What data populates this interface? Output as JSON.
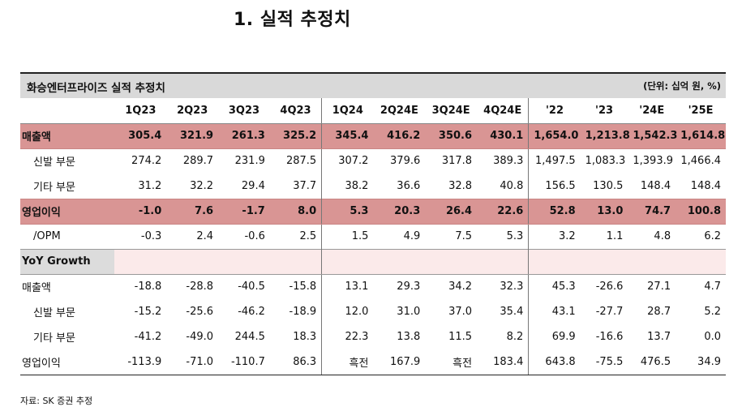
{
  "page_title": "1.  실적 추정치",
  "table": {
    "title": "화승엔터프라이즈 실적 추정치",
    "unit": "(단위: 십억 원, %)",
    "columns": [
      "1Q23",
      "2Q23",
      "3Q23",
      "4Q23",
      "1Q24",
      "2Q24E",
      "3Q24E",
      "4Q24E",
      "'22",
      "'23",
      "'24E",
      "'25E"
    ],
    "rows": [
      {
        "label": "매출액",
        "values": [
          "305.4",
          "321.9",
          "261.3",
          "325.2",
          "345.4",
          "416.2",
          "350.6",
          "430.1",
          "1,654.0",
          "1,213.8",
          "1,542.3",
          "1,614.8"
        ]
      },
      {
        "label": "신발 부문",
        "values": [
          "274.2",
          "289.7",
          "231.9",
          "287.5",
          "307.2",
          "379.6",
          "317.8",
          "389.3",
          "1,497.5",
          "1,083.3",
          "1,393.9",
          "1,466.4"
        ]
      },
      {
        "label": "기타 부문",
        "values": [
          "31.2",
          "32.2",
          "29.4",
          "37.7",
          "38.2",
          "36.6",
          "32.8",
          "40.8",
          "156.5",
          "130.5",
          "148.4",
          "148.4"
        ]
      },
      {
        "label": "영업이익",
        "values": [
          "-1.0",
          "7.6",
          "-1.7",
          "8.0",
          "5.3",
          "20.3",
          "26.4",
          "22.6",
          "52.8",
          "13.0",
          "74.7",
          "100.8"
        ]
      },
      {
        "label": "/OPM",
        "values": [
          "-0.3",
          "2.4",
          "-0.6",
          "2.5",
          "1.5",
          "4.9",
          "7.5",
          "5.3",
          "3.2",
          "1.1",
          "4.8",
          "6.2"
        ]
      }
    ],
    "yoy_label": "YoY Growth",
    "yoy_rows": [
      {
        "label": "매출액",
        "values": [
          "-18.8",
          "-28.8",
          "-40.5",
          "-15.8",
          "13.1",
          "29.3",
          "34.2",
          "32.3",
          "45.3",
          "-26.6",
          "27.1",
          "4.7"
        ]
      },
      {
        "label": "신발 부문",
        "values": [
          "-15.2",
          "-25.6",
          "-46.2",
          "-18.9",
          "12.0",
          "31.0",
          "37.0",
          "35.4",
          "43.1",
          "-27.7",
          "28.7",
          "5.2"
        ]
      },
      {
        "label": "기타 부문",
        "values": [
          "-41.2",
          "-49.0",
          "244.5",
          "18.3",
          "22.3",
          "13.8",
          "11.5",
          "8.2",
          "69.9",
          "-16.6",
          "13.7",
          "0.0"
        ]
      },
      {
        "label": "영업이익",
        "values": [
          "-113.9",
          "-71.0",
          "-110.7",
          "86.3",
          "흑전",
          "167.9",
          "흑전",
          "183.4",
          "643.8",
          "-75.5",
          "476.5",
          "34.9"
        ]
      }
    ]
  },
  "source": "자료: SK 증권 추정",
  "colors": {
    "highlight": "#d99594",
    "header_bg": "#d9d9d9",
    "yoy_bg": "#dcdcdc"
  }
}
